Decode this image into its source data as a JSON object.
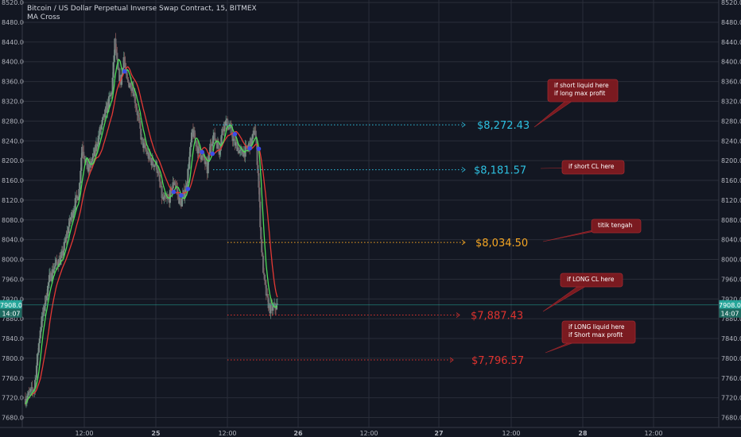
{
  "header": {
    "title": "Bitcoin / US Dollar Perpetual Inverse Swap Contract, 15, BITMEX",
    "indicator": "MA Cross"
  },
  "chart_data": {
    "type": "candlestick",
    "ylim": [
      7660,
      8525
    ],
    "y_ticks": [
      "8520.0",
      "8480.0",
      "8440.0",
      "8400.0",
      "8360.0",
      "8320.0",
      "8280.0",
      "8240.0",
      "8200.0",
      "8160.0",
      "8120.0",
      "8080.0",
      "8040.0",
      "8000.0",
      "7960.0",
      "7920.0",
      "7880.0",
      "7840.0",
      "7800.0",
      "7760.0",
      "7720.0",
      "7680.0"
    ],
    "x_ticks": [
      "12:00",
      "25",
      "12:00",
      "26",
      "12:00",
      "27",
      "12:00",
      "28",
      "12:00"
    ],
    "bold_x_ticks": [
      "25",
      "26",
      "27",
      "28"
    ],
    "grid": true,
    "last_price": {
      "value": 7908.0,
      "label": "7908.0",
      "countdown": "14:07"
    },
    "colors": {
      "up": "#26a69a",
      "down": "#ef5350",
      "fast_ma": "#4cdc57",
      "slow_ma": "#e53935",
      "cross_marker": "#3d4ee8",
      "background": "#131722"
    },
    "candles_summary": {
      "count": 200,
      "path_x_hours": [
        0,
        3,
        5,
        8,
        10,
        12,
        15,
        18,
        19,
        21,
        23,
        25,
        27,
        29,
        30,
        31,
        32,
        33,
        34,
        36,
        38,
        39,
        40,
        42,
        44,
        46,
        48,
        50,
        52,
        54,
        56,
        58,
        60,
        61,
        62,
        63,
        64,
        65,
        66,
        67,
        69,
        70,
        71,
        72,
        74,
        76,
        77,
        78,
        79,
        80,
        81,
        82,
        83,
        84,
        85,
        86,
        87,
        88,
        89,
        90,
        91
      ],
      "path_y": [
        7718,
        7740,
        7860,
        7960,
        7990,
        8000,
        8080,
        8140,
        8230,
        8180,
        8210,
        8260,
        8300,
        8340,
        8440,
        8380,
        8360,
        8410,
        8360,
        8350,
        8280,
        8240,
        8225,
        8200,
        8190,
        8120,
        8120,
        8160,
        8110,
        8150,
        8260,
        8220,
        8200,
        8180,
        8230,
        8250,
        8240,
        8220,
        8260,
        8280,
        8260,
        8235,
        8230,
        8215,
        8220,
        8240,
        8265,
        8180,
        8040,
        7960,
        7920,
        7900,
        7900,
        7905,
        7908,
        7908,
        7908,
        7908,
        7908,
        7908,
        7908
      ]
    },
    "horizontal_levels": [
      {
        "value": 8272.43,
        "label": "$8,272.43",
        "color": "#2ec0e0"
      },
      {
        "value": 8181.57,
        "label": "$8,181.57",
        "color": "#2ec0e0"
      },
      {
        "value": 8034.5,
        "label": "$8,034.50",
        "color": "#f5a623"
      },
      {
        "value": 7887.43,
        "label": "$7,887.43",
        "color": "#e0332f"
      },
      {
        "value": 7796.57,
        "label": "$7,796.57",
        "color": "#e0332f"
      }
    ],
    "callouts": [
      {
        "text": [
          "if  short  liquid here",
          "if  long    max profit"
        ]
      },
      {
        "text": [
          "if short  CL  here"
        ]
      },
      {
        "text": [
          "titik tengah"
        ]
      },
      {
        "text": [
          "if LONG  CL  here"
        ]
      },
      {
        "text": [
          "if  LONG  liquid here",
          "if  Short    max profit"
        ]
      }
    ]
  }
}
